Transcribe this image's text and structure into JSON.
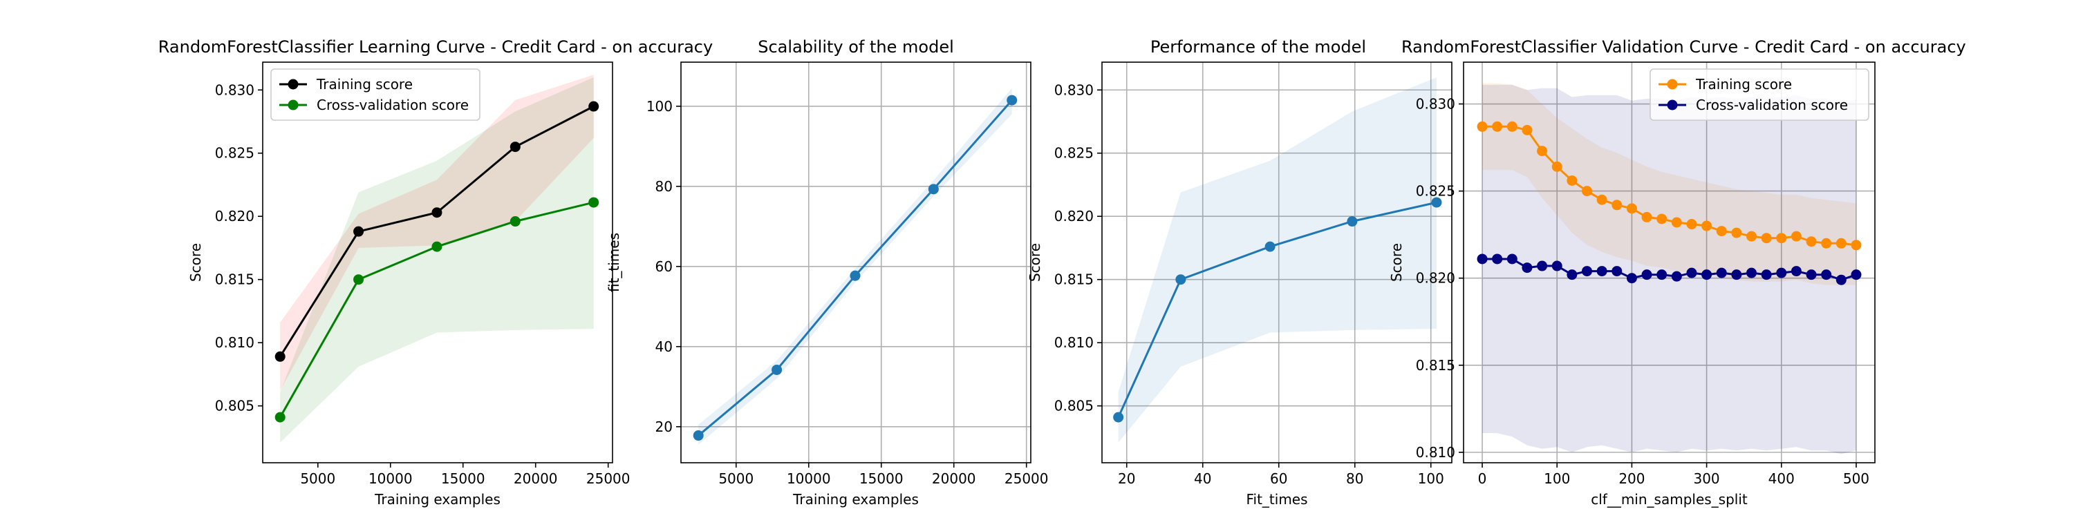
{
  "chart_data": [
    {
      "type": "line",
      "title": "RandomForestClassifier Learning Curve - Credit Card - on accuracy",
      "xlabel": "Training examples",
      "ylabel": "Score",
      "xlim": [
        1200,
        25300
      ],
      "ylim": [
        0.8005,
        0.8322
      ],
      "xticks": [
        5000,
        10000,
        15000,
        20000,
        25000
      ],
      "yticks": [
        0.805,
        0.81,
        0.815,
        0.82,
        0.825,
        0.83
      ],
      "ytick_decimals": 3,
      "grid": false,
      "legend": "top-left",
      "series": [
        {
          "name": "Training score",
          "color": "#000000",
          "x": [
            2400,
            7800,
            13200,
            18600,
            24000
          ],
          "y": [
            0.8089,
            0.8188,
            0.8203,
            0.8255,
            0.8287
          ],
          "band_low": [
            0.8062,
            0.8175,
            0.8177,
            0.8196,
            0.8262
          ],
          "band_high": [
            0.8116,
            0.8202,
            0.8229,
            0.8292,
            0.8312
          ],
          "band_color": "#ff0000"
        },
        {
          "name": "Cross-validation score",
          "color": "#008000",
          "x": [
            2400,
            7800,
            13200,
            18600,
            24000
          ],
          "y": [
            0.8041,
            0.815,
            0.8176,
            0.8196,
            0.8211
          ],
          "band_low": [
            0.8021,
            0.8081,
            0.8108,
            0.811,
            0.8111
          ],
          "band_high": [
            0.8061,
            0.8219,
            0.8244,
            0.8283,
            0.831
          ],
          "band_color": "#008000"
        }
      ]
    },
    {
      "type": "line",
      "title": "Scalability of the model",
      "xlabel": "Training examples",
      "ylabel": "fit_times",
      "xlim": [
        1200,
        25300
      ],
      "ylim": [
        11,
        111
      ],
      "xticks": [
        5000,
        10000,
        15000,
        20000,
        25000
      ],
      "yticks": [
        20,
        40,
        60,
        80,
        100
      ],
      "ytick_decimals": 0,
      "grid": true,
      "legend": "none",
      "series": [
        {
          "name": "",
          "color": "#1f77b4",
          "x": [
            2400,
            7800,
            13200,
            18600,
            24000
          ],
          "y": [
            17.8,
            34.2,
            57.7,
            79.3,
            101.5
          ],
          "band_low": [
            15.5,
            32.0,
            56.0,
            77.5,
            98.0
          ],
          "band_high": [
            20.5,
            36.5,
            59.5,
            81.5,
            104.5
          ],
          "band_color": "#1f77b4"
        }
      ]
    },
    {
      "type": "line",
      "title": "Performance of the model",
      "xlabel": "Fit_times",
      "ylabel": "Score",
      "xlim": [
        13.5,
        105.5
      ],
      "ylim": [
        0.8005,
        0.8322
      ],
      "xticks": [
        20,
        40,
        60,
        80,
        100
      ],
      "yticks": [
        0.805,
        0.81,
        0.815,
        0.82,
        0.825,
        0.83
      ],
      "ytick_decimals": 3,
      "grid": true,
      "legend": "none",
      "series": [
        {
          "name": "",
          "color": "#1f77b4",
          "x": [
            17.8,
            34.2,
            57.7,
            79.3,
            101.5
          ],
          "y": [
            0.8041,
            0.815,
            0.8176,
            0.8196,
            0.8211
          ],
          "band_low": [
            0.8021,
            0.8081,
            0.8108,
            0.811,
            0.8111
          ],
          "band_high": [
            0.8061,
            0.8219,
            0.8244,
            0.8283,
            0.831
          ],
          "band_color": "#1f77b4"
        }
      ]
    },
    {
      "type": "line",
      "title": "RandomForestClassifier Validation Curve - Credit Card - on accuracy",
      "xlabel": "clf__min_samples_split",
      "ylabel": "Score",
      "xlim": [
        -25,
        525
      ],
      "ylim": [
        0.8094,
        0.8324
      ],
      "xticks": [
        0,
        100,
        200,
        300,
        400,
        500
      ],
      "yticks": [
        0.81,
        0.815,
        0.82,
        0.825,
        0.83
      ],
      "ytick_decimals": 3,
      "grid": true,
      "legend": "top-right",
      "series": [
        {
          "name": "Training score",
          "color": "#ff8c00",
          "x": [
            0,
            20,
            40,
            60,
            80,
            100,
            120,
            140,
            160,
            180,
            200,
            220,
            240,
            260,
            280,
            300,
            320,
            340,
            360,
            380,
            400,
            420,
            440,
            460,
            480,
            500
          ],
          "y": [
            0.8287,
            0.8287,
            0.8287,
            0.8285,
            0.8273,
            0.8264,
            0.8256,
            0.825,
            0.8245,
            0.8242,
            0.824,
            0.8235,
            0.8234,
            0.8232,
            0.8231,
            0.823,
            0.8227,
            0.8226,
            0.8224,
            0.8223,
            0.8223,
            0.8224,
            0.8221,
            0.822,
            0.822,
            0.8219
          ],
          "band_low": [
            0.8262,
            0.8262,
            0.8262,
            0.8258,
            0.8246,
            0.8236,
            0.8226,
            0.8219,
            0.8215,
            0.8212,
            0.821,
            0.8207,
            0.8206,
            0.8204,
            0.8203,
            0.8202,
            0.82,
            0.8199,
            0.8198,
            0.8198,
            0.8198,
            0.8199,
            0.8197,
            0.8196,
            0.8196,
            0.8196
          ],
          "band_high": [
            0.8312,
            0.8312,
            0.8311,
            0.8308,
            0.83,
            0.8292,
            0.8286,
            0.828,
            0.8275,
            0.8272,
            0.8268,
            0.8264,
            0.8261,
            0.8259,
            0.8257,
            0.8255,
            0.8253,
            0.8251,
            0.825,
            0.8249,
            0.8248,
            0.8248,
            0.8246,
            0.8245,
            0.8244,
            0.8243
          ],
          "band_color": "#ff8c00"
        },
        {
          "name": "Cross-validation score",
          "color": "#000080",
          "x": [
            0,
            20,
            40,
            60,
            80,
            100,
            120,
            140,
            160,
            180,
            200,
            220,
            240,
            260,
            280,
            300,
            320,
            340,
            360,
            380,
            400,
            420,
            440,
            460,
            480,
            500
          ],
          "y": [
            0.8211,
            0.8211,
            0.8211,
            0.8206,
            0.8207,
            0.8207,
            0.8202,
            0.8204,
            0.8204,
            0.8204,
            0.82,
            0.8202,
            0.8202,
            0.8201,
            0.8203,
            0.8202,
            0.8203,
            0.8202,
            0.8203,
            0.8202,
            0.8203,
            0.8204,
            0.8202,
            0.8202,
            0.8199,
            0.8202
          ],
          "band_low": [
            0.8111,
            0.8111,
            0.8109,
            0.8104,
            0.8102,
            0.8103,
            0.81,
            0.8103,
            0.8104,
            0.8102,
            0.81,
            0.8102,
            0.8101,
            0.81,
            0.8102,
            0.8101,
            0.8102,
            0.8101,
            0.8102,
            0.8101,
            0.8102,
            0.8103,
            0.8101,
            0.8101,
            0.8099,
            0.8101
          ],
          "band_high": [
            0.8311,
            0.8311,
            0.8311,
            0.8308,
            0.8309,
            0.8309,
            0.8304,
            0.8305,
            0.8305,
            0.8305,
            0.8302,
            0.8303,
            0.8303,
            0.8302,
            0.8304,
            0.8303,
            0.8304,
            0.8303,
            0.8304,
            0.8303,
            0.8304,
            0.8305,
            0.8303,
            0.8303,
            0.83,
            0.8303
          ],
          "band_color": "#000080"
        }
      ]
    }
  ]
}
